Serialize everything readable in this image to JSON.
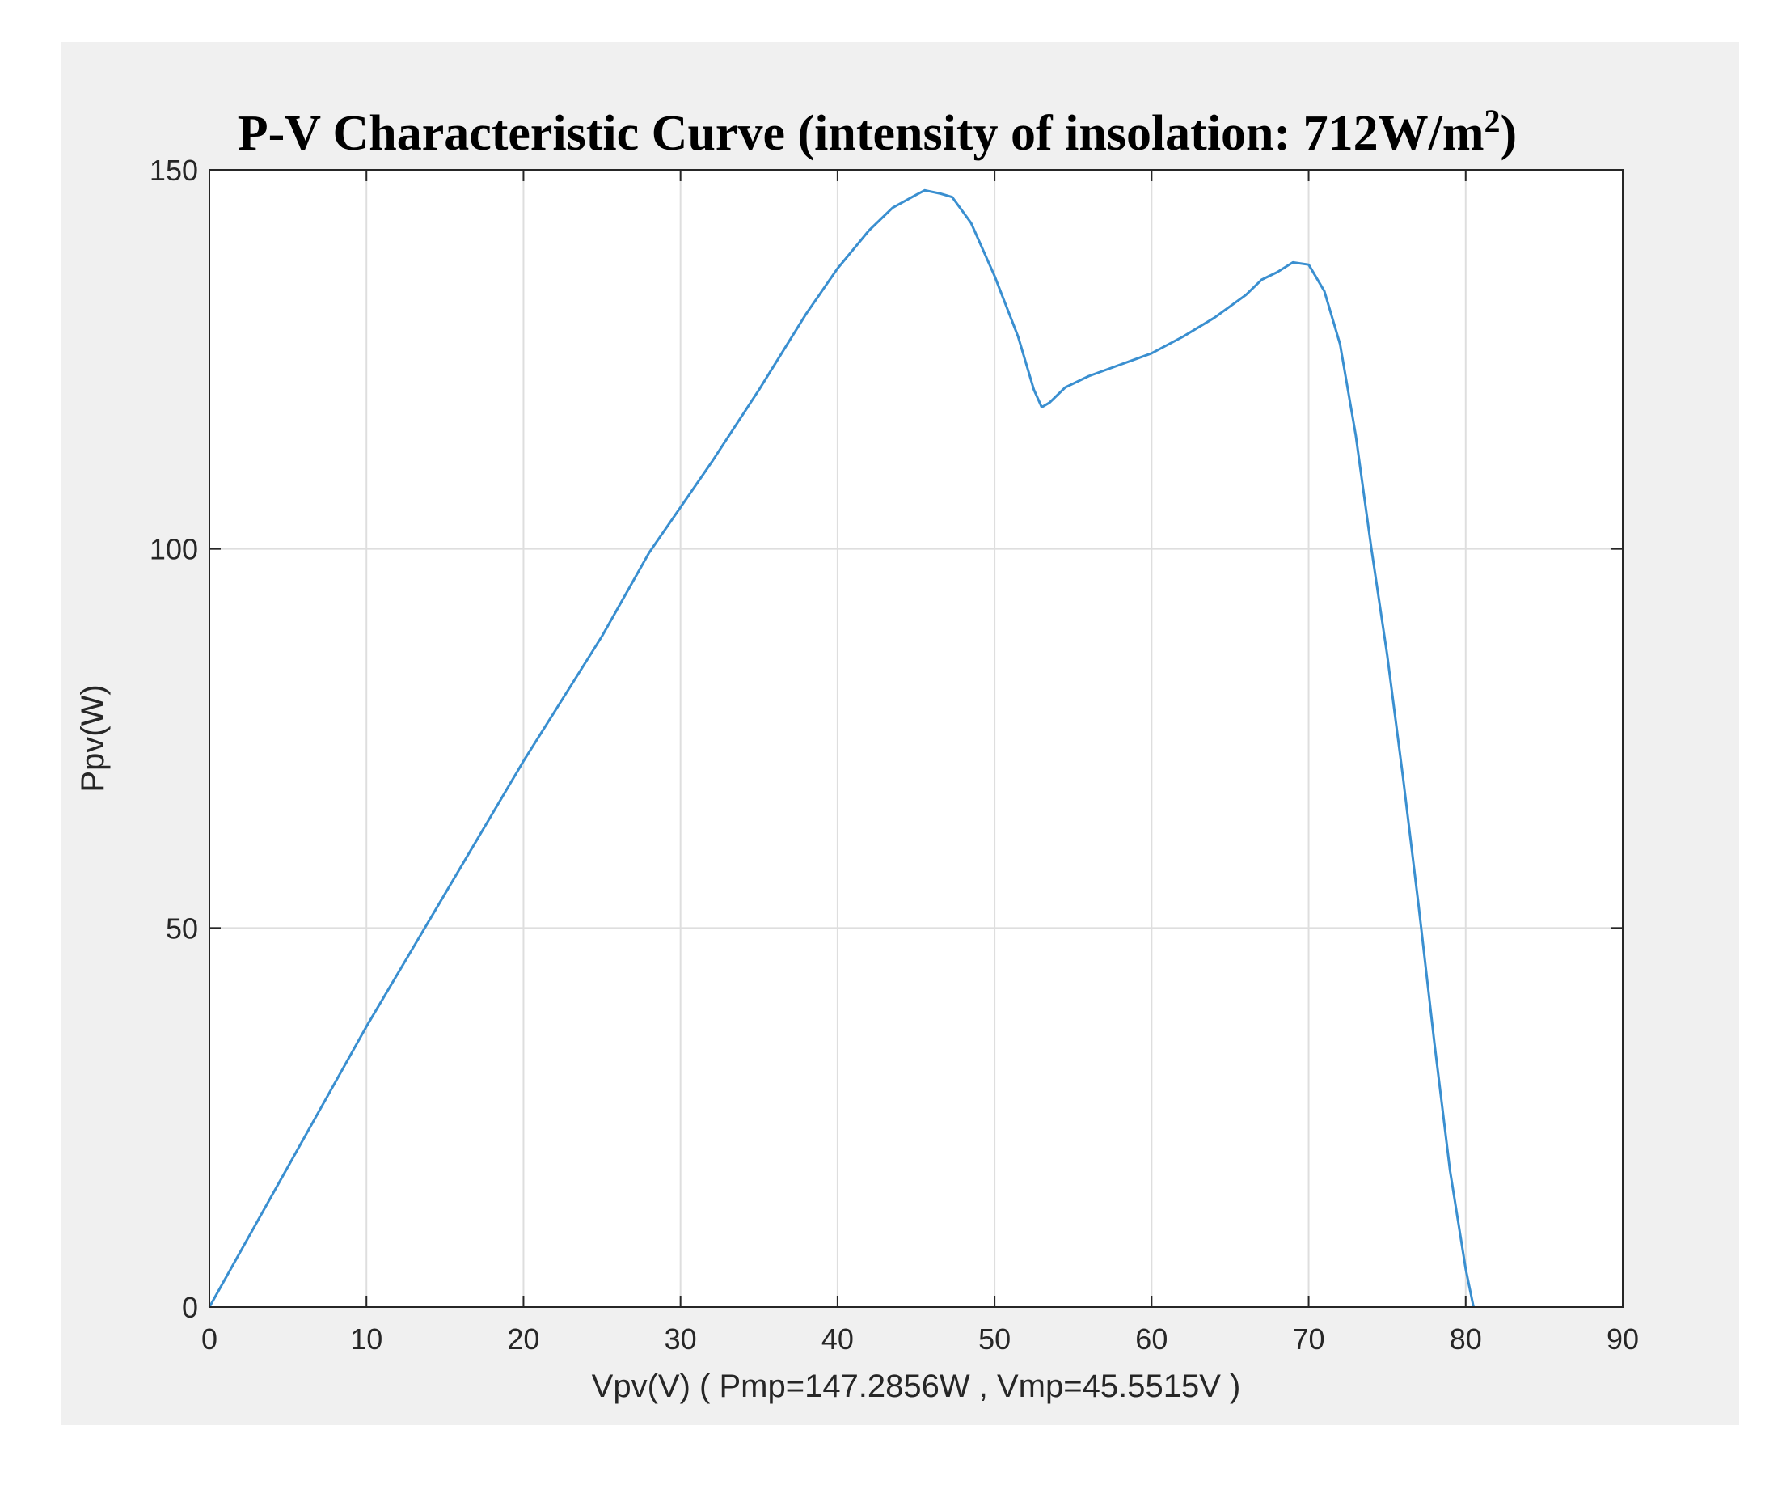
{
  "chart_data": {
    "type": "line",
    "title_main": "P-V  Characteristic  Curve  (intensity  of  insolation:  712W/m",
    "title_sup": "2",
    "title_end": ")",
    "xlabel": "Vpv(V) ( Pmp=147.2856W , Vmp=45.5515V )",
    "ylabel": "Ppv(W)",
    "xlim": [
      0,
      90
    ],
    "ylim": [
      0,
      150
    ],
    "xticks": [
      0,
      10,
      20,
      30,
      40,
      50,
      60,
      70,
      80,
      90
    ],
    "xtick_labels": [
      "0",
      "10",
      "20",
      "30",
      "40",
      "50",
      "60",
      "70",
      "80",
      "90"
    ],
    "yticks": [
      0,
      50,
      100,
      150
    ],
    "ytick_labels": [
      "0",
      "50",
      "100",
      "150"
    ],
    "grid": true,
    "colors": {
      "figure_background": "#f0f0f0",
      "axes_background": "#ffffff",
      "line": "#3a8fd0",
      "grid": "#dedede",
      "axis": "#262626"
    },
    "series": [
      {
        "name": "P-V curve",
        "x": [
          0,
          5,
          10,
          15,
          20,
          25,
          28,
          30,
          32,
          35,
          38,
          40,
          42,
          43.5,
          45,
          45.55,
          46.5,
          47.3,
          48.5,
          50,
          51.5,
          52.5,
          53,
          53.5,
          54.5,
          56,
          58,
          60,
          62,
          64,
          66,
          67,
          68,
          69,
          70,
          71,
          72,
          73,
          74,
          75,
          76,
          77,
          78,
          79,
          80,
          80.5
        ],
        "y": [
          0,
          18.5,
          37,
          54.5,
          72,
          88.5,
          99.5,
          105.5,
          111.5,
          121,
          131,
          137,
          142,
          145,
          146.7,
          147.3,
          146.9,
          146.4,
          143,
          136,
          128,
          121,
          118.7,
          119.3,
          121.3,
          122.8,
          124.3,
          125.8,
          128,
          130.5,
          133.5,
          135.5,
          136.5,
          137.8,
          137.5,
          134,
          127,
          115,
          100,
          86,
          70,
          53,
          35,
          18,
          5,
          0
        ]
      }
    ]
  }
}
